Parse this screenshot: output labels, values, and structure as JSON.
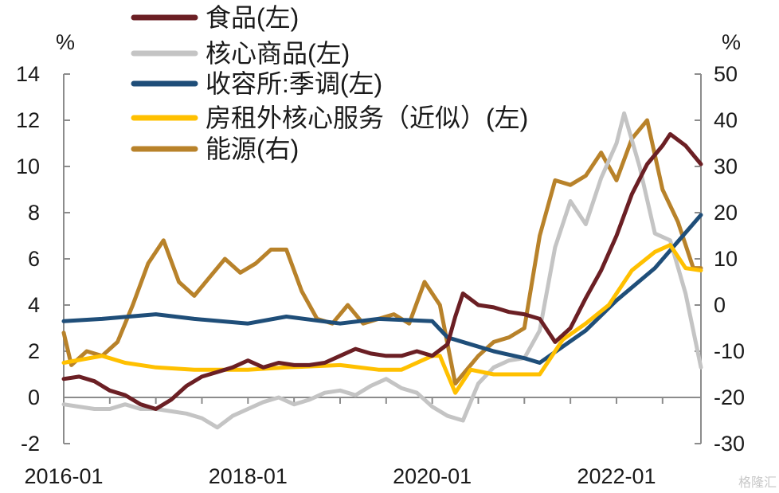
{
  "chart_data": {
    "type": "line",
    "title": "",
    "grid": false,
    "legend_position": "top-left",
    "y_left": {
      "unit": "%",
      "ylim": [
        -2,
        14
      ],
      "ticks": [
        -2,
        0,
        2,
        4,
        6,
        8,
        10,
        12,
        14
      ]
    },
    "y_right": {
      "unit": "%",
      "ylim": [
        -30,
        50
      ],
      "ticks": [
        -30,
        -20,
        -10,
        0,
        10,
        20,
        30,
        40,
        50
      ]
    },
    "x_ticks": [
      "2016-01",
      "2018-01",
      "2020-01",
      "2022-01"
    ],
    "series": [
      {
        "name": "食品(左)",
        "axis": "left",
        "color": "#6b1f24",
        "x": [
          "2016-01",
          "2016-03",
          "2016-05",
          "2016-07",
          "2016-09",
          "2016-11",
          "2017-01",
          "2017-03",
          "2017-05",
          "2017-07",
          "2017-09",
          "2017-11",
          "2018-01",
          "2018-03",
          "2018-05",
          "2018-07",
          "2018-09",
          "2018-11",
          "2019-01",
          "2019-03",
          "2019-05",
          "2019-07",
          "2019-09",
          "2019-11",
          "2020-01",
          "2020-03",
          "2020-04",
          "2020-05",
          "2020-07",
          "2020-09",
          "2020-11",
          "2021-01",
          "2021-03",
          "2021-05",
          "2021-07",
          "2021-09",
          "2021-11",
          "2022-01",
          "2022-03",
          "2022-05",
          "2022-07",
          "2022-08",
          "2022-10",
          "2022-12"
        ],
        "values": [
          0.8,
          0.9,
          0.7,
          0.3,
          0.1,
          -0.3,
          -0.5,
          -0.1,
          0.5,
          0.9,
          1.1,
          1.3,
          1.6,
          1.3,
          1.5,
          1.4,
          1.4,
          1.5,
          1.8,
          2.1,
          1.9,
          1.8,
          1.8,
          2.0,
          1.8,
          2.3,
          3.5,
          4.5,
          4.0,
          3.9,
          3.7,
          3.6,
          3.4,
          2.4,
          3.0,
          4.3,
          5.5,
          7.0,
          8.8,
          10.1,
          10.9,
          11.4,
          10.9,
          10.1
        ]
      },
      {
        "name": "核心商品(左)",
        "axis": "left",
        "color": "#c4c4c4",
        "x": [
          "2016-01",
          "2016-03",
          "2016-05",
          "2016-07",
          "2016-09",
          "2016-11",
          "2017-01",
          "2017-03",
          "2017-05",
          "2017-07",
          "2017-09",
          "2017-11",
          "2018-01",
          "2018-03",
          "2018-05",
          "2018-07",
          "2018-09",
          "2018-11",
          "2019-01",
          "2019-03",
          "2019-05",
          "2019-07",
          "2019-09",
          "2019-11",
          "2020-01",
          "2020-03",
          "2020-05",
          "2020-07",
          "2020-09",
          "2020-11",
          "2021-01",
          "2021-03",
          "2021-05",
          "2021-07",
          "2021-09",
          "2021-11",
          "2022-01",
          "2022-02",
          "2022-04",
          "2022-06",
          "2022-08",
          "2022-10",
          "2022-12"
        ],
        "values": [
          -0.3,
          -0.4,
          -0.5,
          -0.5,
          -0.3,
          -0.5,
          -0.5,
          -0.6,
          -0.7,
          -0.9,
          -1.3,
          -0.8,
          -0.5,
          -0.2,
          0.0,
          -0.3,
          -0.1,
          0.2,
          0.3,
          0.1,
          0.5,
          0.8,
          0.4,
          0.2,
          -0.4,
          -0.8,
          -1.0,
          0.6,
          1.3,
          1.6,
          1.7,
          2.9,
          6.5,
          8.5,
          7.5,
          9.5,
          11.0,
          12.3,
          10.0,
          7.1,
          6.8,
          4.5,
          1.3
        ]
      },
      {
        "name": "收容所:季调(左)",
        "axis": "left",
        "color": "#1f4e79",
        "x": [
          "2016-01",
          "2016-06",
          "2017-01",
          "2017-06",
          "2018-01",
          "2018-06",
          "2019-01",
          "2019-06",
          "2020-01",
          "2020-03",
          "2020-06",
          "2020-09",
          "2021-01",
          "2021-03",
          "2021-06",
          "2021-09",
          "2022-01",
          "2022-06",
          "2022-12"
        ],
        "values": [
          3.3,
          3.4,
          3.6,
          3.4,
          3.2,
          3.5,
          3.2,
          3.4,
          3.3,
          2.6,
          2.3,
          2.0,
          1.7,
          1.5,
          2.2,
          2.9,
          4.2,
          5.6,
          7.9
        ]
      },
      {
        "name": "房租外核心服务（近似）(左)",
        "axis": "left",
        "color": "#ffc000",
        "x": [
          "2016-01",
          "2016-06",
          "2016-09",
          "2017-01",
          "2017-06",
          "2018-01",
          "2018-06",
          "2019-01",
          "2019-06",
          "2019-09",
          "2020-01",
          "2020-02",
          "2020-04",
          "2020-06",
          "2020-09",
          "2020-12",
          "2021-03",
          "2021-06",
          "2021-09",
          "2021-12",
          "2022-03",
          "2022-06",
          "2022-08",
          "2022-10",
          "2022-12"
        ],
        "values": [
          1.5,
          1.8,
          1.5,
          1.3,
          1.2,
          1.2,
          1.3,
          1.4,
          1.2,
          1.2,
          1.8,
          1.8,
          0.2,
          1.2,
          1.0,
          1.0,
          1.0,
          2.5,
          3.2,
          4.0,
          5.5,
          6.3,
          6.6,
          5.6,
          5.5
        ]
      },
      {
        "name": "能源(右)",
        "axis": "right",
        "color": "#b8822a",
        "x": [
          "2016-01",
          "2016-02",
          "2016-04",
          "2016-06",
          "2016-08",
          "2016-10",
          "2016-12",
          "2017-02",
          "2017-04",
          "2017-06",
          "2017-08",
          "2017-10",
          "2017-12",
          "2018-02",
          "2018-04",
          "2018-06",
          "2018-08",
          "2018-10",
          "2018-12",
          "2019-02",
          "2019-04",
          "2019-06",
          "2019-08",
          "2019-10",
          "2019-12",
          "2020-02",
          "2020-04",
          "2020-05",
          "2020-07",
          "2020-09",
          "2020-11",
          "2021-01",
          "2021-03",
          "2021-05",
          "2021-07",
          "2021-09",
          "2021-11",
          "2022-01",
          "2022-03",
          "2022-05",
          "2022-07",
          "2022-09",
          "2022-11",
          "2022-12"
        ],
        "values": [
          -6,
          -13,
          -10,
          -11,
          -8,
          0,
          9,
          14,
          5,
          2,
          6,
          10,
          7,
          9,
          12,
          12,
          3,
          -3,
          -4,
          0,
          -4,
          -3,
          -2,
          -4,
          5,
          0,
          -17,
          -15,
          -11,
          -8,
          -7,
          -5,
          15,
          27,
          26,
          28,
          33,
          27,
          36,
          40,
          25,
          18,
          8,
          8
        ]
      }
    ],
    "watermark": "格隆汇"
  }
}
